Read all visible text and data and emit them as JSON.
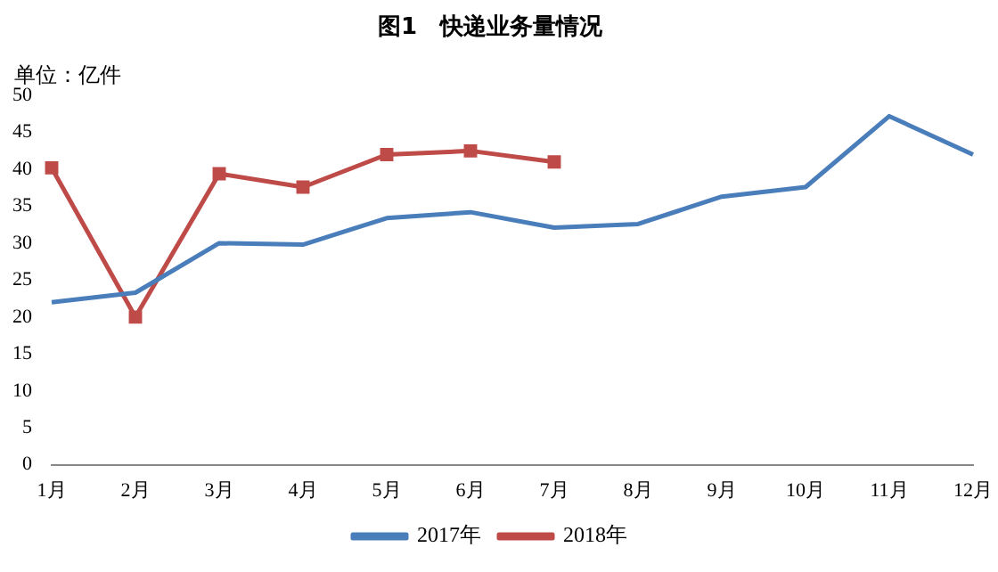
{
  "chart_data": {
    "type": "line",
    "title": "图1　快递业务量情况",
    "annotations": [
      "单位：亿件"
    ],
    "categories": [
      "1月",
      "2月",
      "3月",
      "4月",
      "5月",
      "6月",
      "7月",
      "8月",
      "9月",
      "10月",
      "11月",
      "12月"
    ],
    "series": [
      {
        "name": "2017年",
        "color": "#4a7ebb",
        "marker": "none",
        "values": [
          22,
          23.3,
          30,
          29.8,
          33.4,
          34.2,
          32.1,
          32.6,
          36.3,
          37.6,
          47.2,
          42
        ]
      },
      {
        "name": "2018年",
        "color": "#be4b48",
        "marker": "square",
        "values": [
          40.2,
          20,
          39.4,
          37.6,
          42,
          42.5,
          41,
          null,
          null,
          null,
          null,
          null
        ]
      }
    ],
    "ylim": [
      0,
      50
    ],
    "yticks": [
      0,
      5,
      10,
      15,
      20,
      25,
      30,
      35,
      40,
      45,
      50
    ],
    "grid": false,
    "legend": "bottom",
    "line_style": "solid"
  }
}
